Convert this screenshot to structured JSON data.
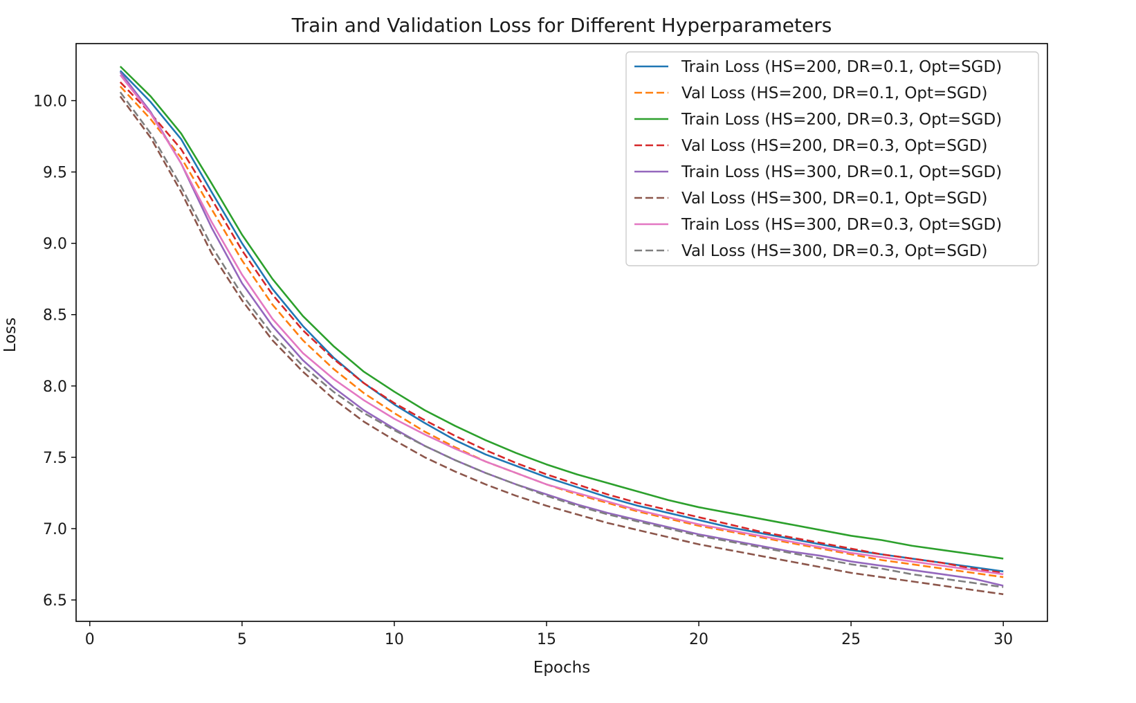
{
  "chart_data": {
    "type": "line",
    "title": "Train and Validation Loss for Different Hyperparameters",
    "xlabel": "Epochs",
    "ylabel": "Loss",
    "xlim": [
      -0.45,
      31.45
    ],
    "ylim": [
      6.35,
      10.4
    ],
    "xticks": [
      0,
      5,
      10,
      15,
      20,
      25,
      30
    ],
    "yticks": [
      6.5,
      7.0,
      7.5,
      8.0,
      8.5,
      9.0,
      9.5,
      10.0
    ],
    "xtick_labels": [
      "0",
      "5",
      "10",
      "15",
      "20",
      "25",
      "30"
    ],
    "ytick_labels": [
      "6.5",
      "7.0",
      "7.5",
      "8.0",
      "8.5",
      "9.0",
      "9.5",
      "10.0"
    ],
    "grid": false,
    "legend_position": "top-right",
    "x": [
      1,
      2,
      3,
      4,
      5,
      6,
      7,
      8,
      9,
      10,
      11,
      12,
      13,
      14,
      15,
      16,
      17,
      18,
      19,
      20,
      21,
      22,
      23,
      24,
      25,
      26,
      27,
      28,
      29,
      30
    ],
    "series": [
      {
        "name": "Train Loss (HS=200, DR=0.1, Opt=SGD)",
        "color": "#1f77b4",
        "style": "solid",
        "values": [
          10.21,
          9.99,
          9.73,
          9.36,
          9.0,
          8.68,
          8.42,
          8.2,
          8.02,
          7.87,
          7.74,
          7.62,
          7.52,
          7.44,
          7.36,
          7.29,
          7.22,
          7.16,
          7.11,
          7.06,
          7.01,
          6.97,
          6.93,
          6.89,
          6.85,
          6.82,
          6.79,
          6.76,
          6.73,
          6.7
        ]
      },
      {
        "name": "Val Loss (HS=200, DR=0.1, Opt=SGD)",
        "color": "#ff7f0e",
        "style": "dashed",
        "values": [
          10.1,
          9.87,
          9.6,
          9.24,
          8.88,
          8.57,
          8.32,
          8.12,
          7.95,
          7.81,
          7.68,
          7.57,
          7.47,
          7.39,
          7.31,
          7.24,
          7.18,
          7.12,
          7.07,
          7.02,
          6.98,
          6.94,
          6.9,
          6.86,
          6.82,
          6.78,
          6.75,
          6.72,
          6.69,
          6.66
        ]
      },
      {
        "name": "Train Loss (HS=200, DR=0.3, Opt=SGD)",
        "color": "#2ca02c",
        "style": "solid",
        "values": [
          10.24,
          10.03,
          9.77,
          9.42,
          9.06,
          8.75,
          8.49,
          8.28,
          8.1,
          7.96,
          7.83,
          7.72,
          7.62,
          7.53,
          7.45,
          7.38,
          7.32,
          7.26,
          7.2,
          7.15,
          7.11,
          7.07,
          7.03,
          6.99,
          6.95,
          6.92,
          6.88,
          6.85,
          6.82,
          6.79
        ]
      },
      {
        "name": "Val Loss (HS=200, DR=0.3, Opt=SGD)",
        "color": "#d62728",
        "style": "dashed",
        "values": [
          10.13,
          9.91,
          9.66,
          9.31,
          8.95,
          8.64,
          8.39,
          8.19,
          8.02,
          7.88,
          7.76,
          7.65,
          7.55,
          7.46,
          7.38,
          7.31,
          7.24,
          7.18,
          7.13,
          7.08,
          7.03,
          6.98,
          6.94,
          6.9,
          6.86,
          6.82,
          6.79,
          6.76,
          6.72,
          6.69
        ]
      },
      {
        "name": "Train Loss (HS=300, DR=0.1, Opt=SGD)",
        "color": "#9467bd",
        "style": "solid",
        "values": [
          10.2,
          9.92,
          9.56,
          9.11,
          8.72,
          8.42,
          8.18,
          7.99,
          7.83,
          7.7,
          7.58,
          7.48,
          7.39,
          7.31,
          7.24,
          7.17,
          7.11,
          7.06,
          7.01,
          6.96,
          6.92,
          6.88,
          6.84,
          6.81,
          6.77,
          6.74,
          6.71,
          6.68,
          6.65,
          6.6
        ]
      },
      {
        "name": "Val Loss (HS=300, DR=0.1, Opt=SGD)",
        "color": "#8c564b",
        "style": "dashed",
        "values": [
          10.03,
          9.74,
          9.36,
          8.93,
          8.6,
          8.32,
          8.1,
          7.91,
          7.75,
          7.62,
          7.5,
          7.4,
          7.31,
          7.23,
          7.16,
          7.1,
          7.04,
          6.99,
          6.94,
          6.89,
          6.85,
          6.81,
          6.77,
          6.73,
          6.69,
          6.66,
          6.63,
          6.6,
          6.57,
          6.54
        ]
      },
      {
        "name": "Train Loss (HS=300, DR=0.3, Opt=SGD)",
        "color": "#e377c2",
        "style": "solid",
        "values": [
          10.18,
          9.91,
          9.56,
          9.15,
          8.78,
          8.47,
          8.23,
          8.05,
          7.9,
          7.77,
          7.66,
          7.56,
          7.47,
          7.39,
          7.31,
          7.25,
          7.19,
          7.13,
          7.08,
          7.03,
          6.99,
          6.95,
          6.91,
          6.87,
          6.83,
          6.8,
          6.77,
          6.74,
          6.71,
          6.68
        ]
      },
      {
        "name": "Val Loss (HS=300, DR=0.3, Opt=SGD)",
        "color": "#7f7f7f",
        "style": "dashed",
        "values": [
          10.06,
          9.77,
          9.4,
          8.98,
          8.64,
          8.36,
          8.14,
          7.96,
          7.81,
          7.69,
          7.58,
          7.48,
          7.39,
          7.31,
          7.23,
          7.16,
          7.1,
          7.05,
          7.0,
          6.95,
          6.91,
          6.87,
          6.83,
          6.79,
          6.75,
          6.72,
          6.68,
          6.65,
          6.62,
          6.59
        ]
      }
    ]
  }
}
